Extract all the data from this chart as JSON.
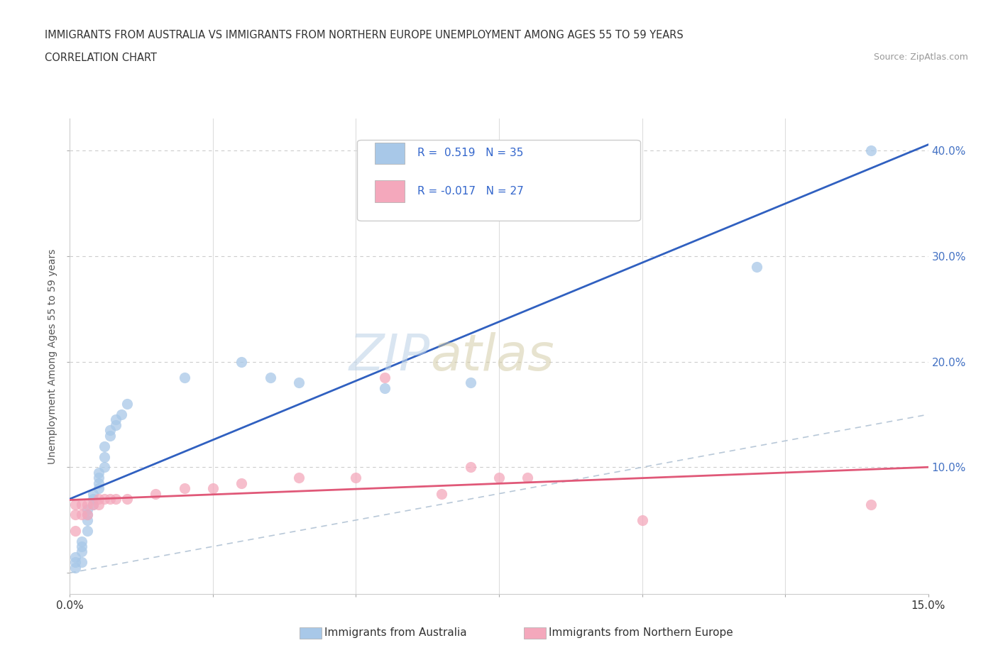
{
  "title_line1": "IMMIGRANTS FROM AUSTRALIA VS IMMIGRANTS FROM NORTHERN EUROPE UNEMPLOYMENT AMONG AGES 55 TO 59 YEARS",
  "title_line2": "CORRELATION CHART",
  "source": "Source: ZipAtlas.com",
  "ylabel": "Unemployment Among Ages 55 to 59 years",
  "xlim": [
    0.0,
    0.15
  ],
  "ylim": [
    -0.02,
    0.43
  ],
  "color_australia": "#a8c8e8",
  "color_northern_europe": "#f4a8bc",
  "color_line_australia": "#3060c0",
  "color_line_northern_europe": "#e05878",
  "color_diag": "#b8c8d8",
  "watermark_zip": "ZIP",
  "watermark_atlas": "atlas",
  "legend_r1": "R =  0.519   N = 35",
  "legend_r2": "R = -0.017   N = 27",
  "aus_legend": "Immigrants from Australia",
  "ne_legend": "Immigrants from Northern Europe",
  "australia_x": [
    0.001,
    0.001,
    0.001,
    0.002,
    0.002,
    0.002,
    0.002,
    0.003,
    0.003,
    0.003,
    0.003,
    0.004,
    0.004,
    0.004,
    0.005,
    0.005,
    0.005,
    0.005,
    0.006,
    0.006,
    0.006,
    0.007,
    0.007,
    0.008,
    0.008,
    0.009,
    0.01,
    0.02,
    0.03,
    0.035,
    0.04,
    0.055,
    0.07,
    0.12,
    0.14
  ],
  "australia_y": [
    0.005,
    0.01,
    0.015,
    0.01,
    0.02,
    0.025,
    0.03,
    0.04,
    0.05,
    0.055,
    0.06,
    0.065,
    0.07,
    0.075,
    0.08,
    0.085,
    0.09,
    0.095,
    0.1,
    0.11,
    0.12,
    0.13,
    0.135,
    0.14,
    0.145,
    0.15,
    0.16,
    0.185,
    0.2,
    0.185,
    0.18,
    0.175,
    0.18,
    0.29,
    0.4
  ],
  "northern_europe_x": [
    0.001,
    0.001,
    0.001,
    0.002,
    0.002,
    0.003,
    0.003,
    0.004,
    0.005,
    0.005,
    0.006,
    0.007,
    0.008,
    0.01,
    0.015,
    0.02,
    0.025,
    0.03,
    0.04,
    0.05,
    0.055,
    0.065,
    0.07,
    0.075,
    0.08,
    0.1,
    0.14
  ],
  "northern_europe_y": [
    0.04,
    0.055,
    0.065,
    0.055,
    0.065,
    0.055,
    0.065,
    0.065,
    0.065,
    0.07,
    0.07,
    0.07,
    0.07,
    0.07,
    0.075,
    0.08,
    0.08,
    0.085,
    0.09,
    0.09,
    0.185,
    0.075,
    0.1,
    0.09,
    0.09,
    0.05,
    0.065
  ]
}
